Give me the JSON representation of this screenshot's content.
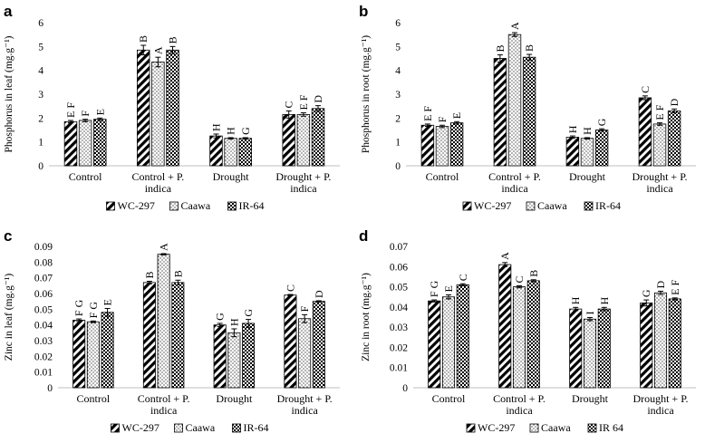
{
  "patterns": {
    "hatch_color": "#000000",
    "dots_color": "#000000",
    "check_color": "#000000"
  },
  "chart_data": [
    {
      "type": "bar",
      "panel_letter": "a",
      "ylabel": "Phosphorus in leaf (mg.g⁻¹)",
      "ylim": [
        0,
        6
      ],
      "yticks": [
        "0",
        "1",
        "2",
        "3",
        "4",
        "5",
        "6"
      ],
      "yticks_values": [
        0,
        1,
        2,
        3,
        4,
        5,
        6
      ],
      "categories": [
        [
          "Control"
        ],
        [
          "Control + P.",
          "indica"
        ],
        [
          "Drought"
        ],
        [
          "Drought + P.",
          "indica"
        ]
      ],
      "legend": "bottom",
      "series": [
        {
          "name": "WC-297",
          "pattern": "hatch",
          "values": [
            1.85,
            4.85,
            1.25,
            2.15
          ],
          "errors": [
            0.05,
            0.2,
            0.08,
            0.15
          ],
          "letters": [
            "E F",
            "B",
            "H",
            "C"
          ]
        },
        {
          "name": "Caawa",
          "pattern": "dots",
          "values": [
            1.9,
            4.35,
            1.15,
            2.15
          ],
          "errors": [
            0.05,
            0.2,
            0.03,
            0.07
          ],
          "letters": [
            "F",
            "A",
            "H",
            "E F"
          ]
        },
        {
          "name": "IR-64",
          "pattern": "check",
          "values": [
            1.95,
            4.85,
            1.15,
            2.4
          ],
          "errors": [
            0.05,
            0.15,
            0.03,
            0.12
          ],
          "letters": [
            "E",
            "B",
            "G",
            "D"
          ]
        }
      ]
    },
    {
      "type": "bar",
      "panel_letter": "b",
      "ylabel": "Phosphorus in root (mg.g⁻¹)",
      "ylim": [
        0,
        6
      ],
      "yticks": [
        "0",
        "1",
        "2",
        "3",
        "4",
        "5",
        "6"
      ],
      "yticks_values": [
        0,
        1,
        2,
        3,
        4,
        5,
        6
      ],
      "categories": [
        [
          "Control"
        ],
        [
          "Control + P.",
          "indica"
        ],
        [
          "Drought"
        ],
        [
          "Drought + P.",
          "indica"
        ]
      ],
      "legend": "bottom",
      "series": [
        {
          "name": "WC-297",
          "pattern": "hatch",
          "values": [
            1.7,
            4.5,
            1.2,
            2.85
          ],
          "errors": [
            0.05,
            0.15,
            0.05,
            0.08
          ],
          "letters": [
            "E F",
            "B",
            "H",
            "C"
          ]
        },
        {
          "name": "Caawa",
          "pattern": "dots",
          "values": [
            1.65,
            5.5,
            1.15,
            1.75
          ],
          "errors": [
            0.05,
            0.08,
            0.03,
            0.05
          ],
          "letters": [
            "F",
            "A",
            "H",
            "E F"
          ]
        },
        {
          "name": "IR-64",
          "pattern": "check",
          "values": [
            1.8,
            4.55,
            1.5,
            2.3
          ],
          "errors": [
            0.05,
            0.12,
            0.05,
            0.08
          ],
          "letters": [
            "E",
            "B",
            "G",
            "D"
          ]
        }
      ]
    },
    {
      "type": "bar",
      "panel_letter": "c",
      "ylabel": "Zinc in leaf (mg.g⁻¹)",
      "ylim": [
        0,
        0.09
      ],
      "yticks": [
        "0",
        "0.01",
        "0.02",
        "0.03",
        "0.04",
        "0.05",
        "0.06",
        "0.07",
        "0.08",
        "0.09"
      ],
      "yticks_values": [
        0,
        0.01,
        0.02,
        0.03,
        0.04,
        0.05,
        0.06,
        0.07,
        0.08,
        0.09
      ],
      "categories": [
        [
          "Control"
        ],
        [
          "Control + P.",
          "indica"
        ],
        [
          "Drought"
        ],
        [
          "Drought + P.",
          "indica"
        ]
      ],
      "legend": "bottom",
      "series": [
        {
          "name": "WC-297",
          "pattern": "hatch",
          "values": [
            0.043,
            0.067,
            0.04,
            0.059
          ],
          "errors": [
            0.0008,
            0.0008,
            0.001,
            0.0004
          ],
          "letters": [
            "F G",
            "B",
            "G",
            "C"
          ]
        },
        {
          "name": "Caawa",
          "pattern": "dots",
          "values": [
            0.042,
            0.085,
            0.035,
            0.044
          ],
          "errors": [
            0.0005,
            0.0004,
            0.0025,
            0.0025
          ],
          "letters": [
            "F G",
            "A",
            "H",
            "F"
          ]
        },
        {
          "name": "IR-64",
          "pattern": "check",
          "values": [
            0.048,
            0.067,
            0.041,
            0.055
          ],
          "errors": [
            0.0025,
            0.0015,
            0.0025,
            0.0004
          ],
          "letters": [
            "E",
            "B",
            "G",
            "D"
          ]
        }
      ]
    },
    {
      "type": "bar",
      "panel_letter": "d",
      "ylabel": "Zinc in root (mg.g⁻¹)",
      "ylim": [
        0,
        0.07
      ],
      "yticks": [
        "0",
        "0.01",
        "0.02",
        "0.03",
        "0.04",
        "0.05",
        "0.06",
        "0.07"
      ],
      "yticks_values": [
        0,
        0.01,
        0.02,
        0.03,
        0.04,
        0.05,
        0.06,
        0.07
      ],
      "categories": [
        [
          "Control"
        ],
        [
          "Control + P.",
          "indica"
        ],
        [
          "Drought"
        ],
        [
          "Drought + P.",
          "indica"
        ]
      ],
      "legend": "bottom",
      "series": [
        {
          "name": "WC-297",
          "pattern": "hatch",
          "values": [
            0.043,
            0.061,
            0.039,
            0.042
          ],
          "errors": [
            0.0005,
            0.001,
            0.0008,
            0.0015
          ],
          "letters": [
            "F G",
            "A",
            "H",
            "G"
          ]
        },
        {
          "name": "Caawa",
          "pattern": "dots",
          "values": [
            0.045,
            0.05,
            0.034,
            0.047
          ],
          "errors": [
            0.001,
            0.0005,
            0.0008,
            0.0008
          ],
          "letters": [
            "E",
            "C",
            "I",
            "D"
          ]
        },
        {
          "name": "IR 64",
          "pattern": "check",
          "values": [
            0.051,
            0.053,
            0.039,
            0.044
          ],
          "errors": [
            0.0005,
            0.0005,
            0.0008,
            0.0005
          ],
          "letters": [
            "C",
            "B",
            "H",
            "E F"
          ]
        }
      ]
    }
  ]
}
